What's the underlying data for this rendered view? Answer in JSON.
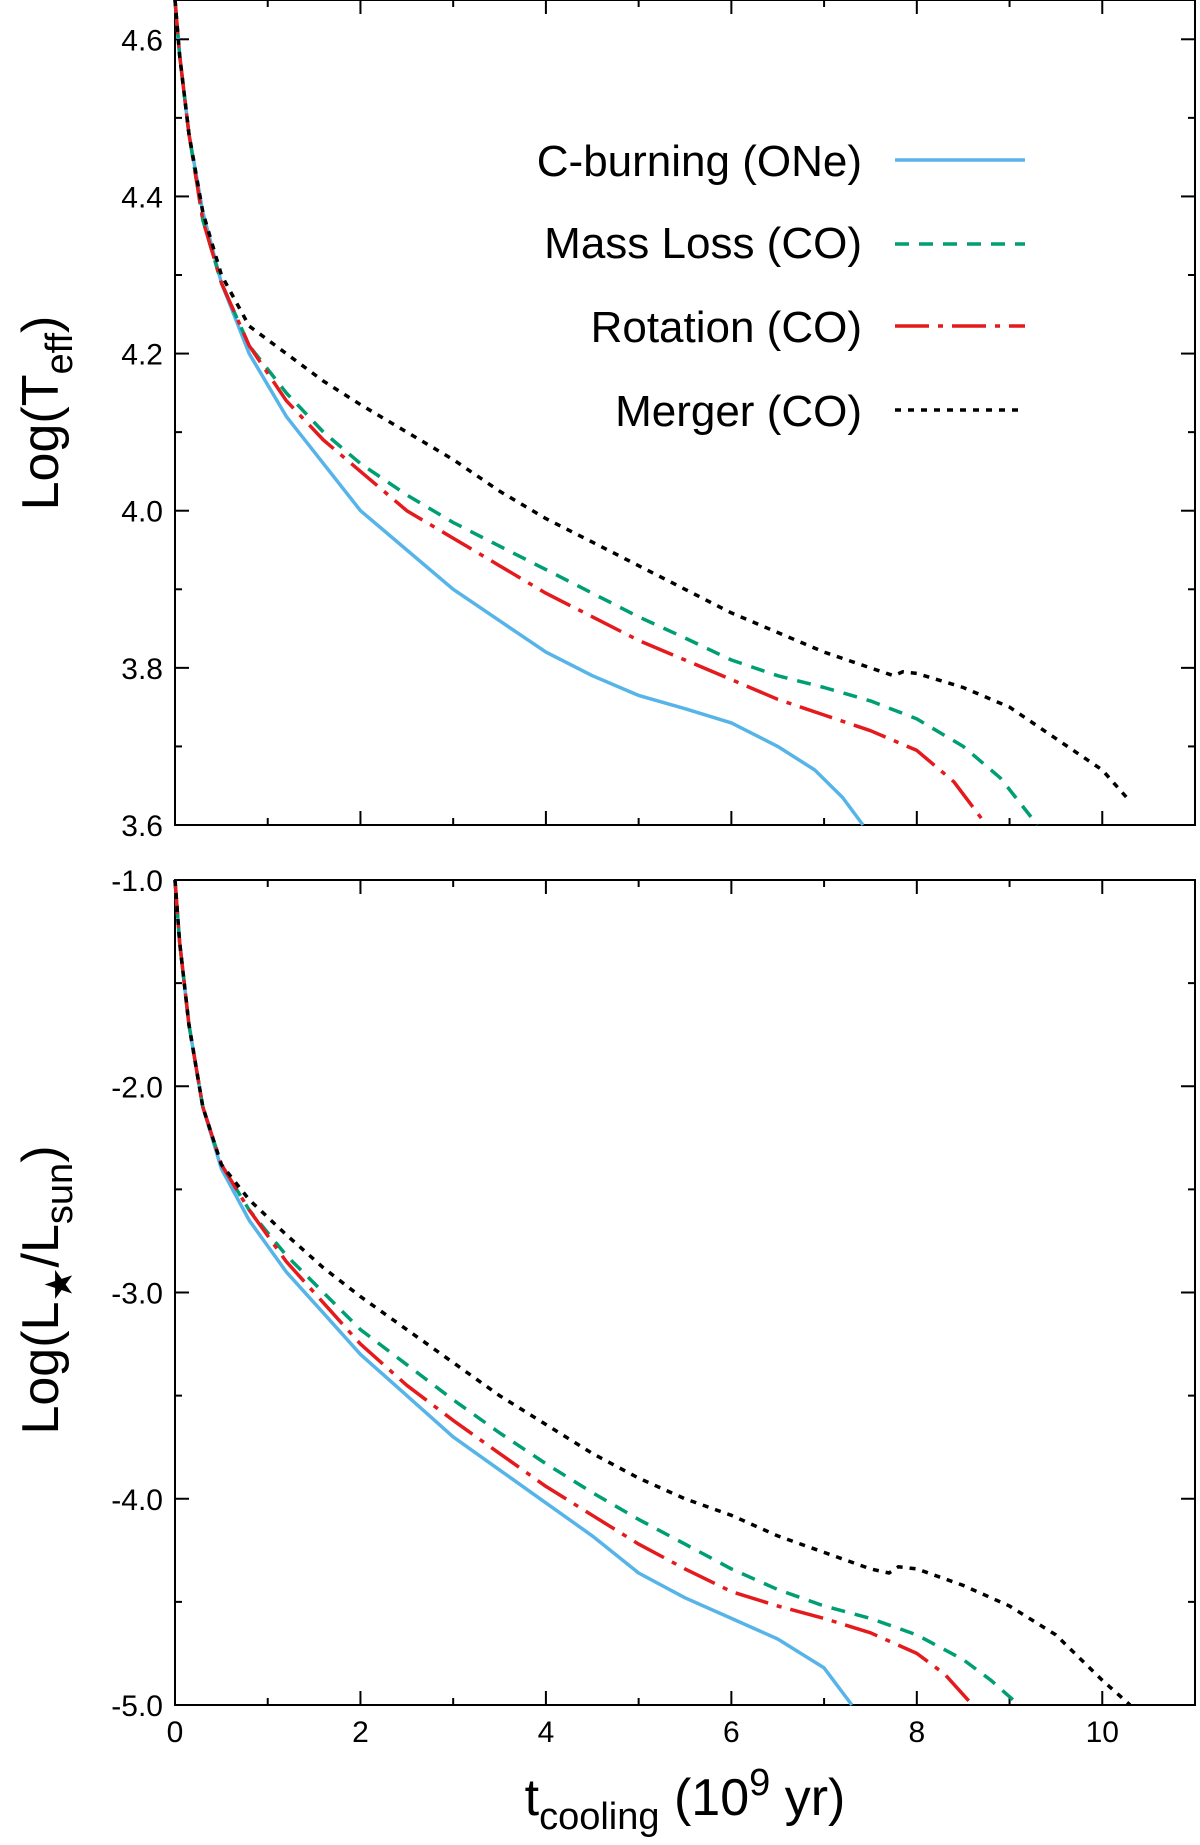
{
  "colors": {
    "c_burning": "#56b4e9",
    "mass_loss": "#009e73",
    "rotation": "#e41a1c",
    "merger": "#000000"
  },
  "chart_data": {
    "type": "line",
    "shared_x": {
      "label_main": "t",
      "label_sub": "cooling",
      "label_rest_a": " (10",
      "label_sup": "9",
      "label_rest_b": " yr)",
      "xlim": [
        0,
        11
      ],
      "major_ticks": [
        0,
        2,
        4,
        6,
        8,
        10
      ],
      "tick_labels": [
        "0",
        "2",
        "4",
        "6",
        "8",
        "10"
      ],
      "minor_ticks": [
        1,
        3,
        5,
        7,
        9,
        11
      ]
    },
    "legend": {
      "placement": "top-right of upper panel",
      "entries": [
        {
          "key": "c_burning",
          "label": "C-burning (ONe)",
          "style": "solid"
        },
        {
          "key": "mass_loss",
          "label": "Mass Loss (CO)",
          "style": "dashed"
        },
        {
          "key": "rotation",
          "label": "Rotation (CO)",
          "style": "dash-dot"
        },
        {
          "key": "merger",
          "label": "Merger (CO)",
          "style": "dotted"
        }
      ]
    },
    "panels": [
      {
        "id": "teff",
        "ylabel_main": "Log(T",
        "ylabel_sub": "eff",
        "ylabel_tail": ")",
        "ylim": [
          3.6,
          4.65
        ],
        "yticks": [
          3.6,
          3.8,
          4.0,
          4.2,
          4.4,
          4.6
        ],
        "ytick_labels": [
          "3.6",
          "3.8",
          "4.0",
          "4.2",
          "4.4",
          "4.6"
        ],
        "yminor": [
          3.7,
          3.9,
          4.1,
          4.3,
          4.5
        ],
        "series": [
          {
            "key": "c_burning",
            "points": [
              [
                0,
                4.65
              ],
              [
                0.05,
                4.58
              ],
              [
                0.15,
                4.48
              ],
              [
                0.3,
                4.38
              ],
              [
                0.5,
                4.29
              ],
              [
                0.8,
                4.2
              ],
              [
                1.2,
                4.12
              ],
              [
                1.6,
                4.06
              ],
              [
                2.0,
                4.0
              ],
              [
                2.5,
                3.95
              ],
              [
                3.0,
                3.9
              ],
              [
                3.5,
                3.86
              ],
              [
                4.0,
                3.82
              ],
              [
                4.5,
                3.79
              ],
              [
                5.0,
                3.765
              ],
              [
                5.5,
                3.748
              ],
              [
                6.0,
                3.73
              ],
              [
                6.5,
                3.7
              ],
              [
                6.9,
                3.67
              ],
              [
                7.2,
                3.635
              ],
              [
                7.42,
                3.6
              ]
            ]
          },
          {
            "key": "mass_loss",
            "points": [
              [
                0,
                4.65
              ],
              [
                0.05,
                4.58
              ],
              [
                0.15,
                4.48
              ],
              [
                0.3,
                4.37
              ],
              [
                0.5,
                4.29
              ],
              [
                0.8,
                4.21
              ],
              [
                1.2,
                4.15
              ],
              [
                1.6,
                4.1
              ],
              [
                2.0,
                4.06
              ],
              [
                2.5,
                4.02
              ],
              [
                3.0,
                3.985
              ],
              [
                3.5,
                3.955
              ],
              [
                4.0,
                3.925
              ],
              [
                4.5,
                3.895
              ],
              [
                5.0,
                3.865
              ],
              [
                5.5,
                3.838
              ],
              [
                6.0,
                3.81
              ],
              [
                6.5,
                3.79
              ],
              [
                7.0,
                3.775
              ],
              [
                7.5,
                3.758
              ],
              [
                8.0,
                3.735
              ],
              [
                8.5,
                3.7
              ],
              [
                8.9,
                3.66
              ],
              [
                9.3,
                3.6
              ]
            ]
          },
          {
            "key": "rotation",
            "points": [
              [
                0,
                4.65
              ],
              [
                0.05,
                4.58
              ],
              [
                0.15,
                4.48
              ],
              [
                0.3,
                4.37
              ],
              [
                0.5,
                4.29
              ],
              [
                0.8,
                4.21
              ],
              [
                1.2,
                4.14
              ],
              [
                1.6,
                4.09
              ],
              [
                2.0,
                4.05
              ],
              [
                2.5,
                4.0
              ],
              [
                3.0,
                3.965
              ],
              [
                3.5,
                3.93
              ],
              [
                4.0,
                3.895
              ],
              [
                4.5,
                3.865
              ],
              [
                5.0,
                3.835
              ],
              [
                5.5,
                3.81
              ],
              [
                6.0,
                3.785
              ],
              [
                6.5,
                3.76
              ],
              [
                7.0,
                3.74
              ],
              [
                7.5,
                3.72
              ],
              [
                8.0,
                3.695
              ],
              [
                8.4,
                3.655
              ],
              [
                8.75,
                3.6
              ]
            ]
          },
          {
            "key": "merger",
            "points": [
              [
                0,
                4.65
              ],
              [
                0.05,
                4.58
              ],
              [
                0.15,
                4.48
              ],
              [
                0.3,
                4.38
              ],
              [
                0.5,
                4.3
              ],
              [
                0.8,
                4.235
              ],
              [
                1.2,
                4.2
              ],
              [
                1.6,
                4.165
              ],
              [
                2.0,
                4.135
              ],
              [
                2.5,
                4.1
              ],
              [
                3.0,
                4.065
              ],
              [
                3.5,
                4.025
              ],
              [
                4.0,
                3.99
              ],
              [
                4.5,
                3.96
              ],
              [
                5.0,
                3.93
              ],
              [
                5.5,
                3.9
              ],
              [
                6.0,
                3.87
              ],
              [
                6.5,
                3.845
              ],
              [
                7.0,
                3.82
              ],
              [
                7.5,
                3.8
              ],
              [
                7.75,
                3.79
              ],
              [
                7.85,
                3.795
              ],
              [
                8.0,
                3.793
              ],
              [
                8.5,
                3.775
              ],
              [
                9.0,
                3.75
              ],
              [
                9.5,
                3.71
              ],
              [
                10.0,
                3.67
              ],
              [
                10.3,
                3.63
              ]
            ]
          }
        ]
      },
      {
        "id": "lum",
        "ylabel_main": "Log(L",
        "ylabel_sub": "★",
        "ylabel_mid": "/L",
        "ylabel_sub2": "sun",
        "ylabel_tail": ")",
        "ylim": [
          -5.0,
          -1.0
        ],
        "yticks": [
          -5.0,
          -4.0,
          -3.0,
          -2.0,
          -1.0
        ],
        "ytick_labels": [
          "-5.0",
          "-4.0",
          "-3.0",
          "-2.0",
          "-1.0"
        ],
        "yminor": [
          -4.5,
          -3.5,
          -2.5,
          -1.5
        ],
        "series": [
          {
            "key": "c_burning",
            "points": [
              [
                0,
                -1.0
              ],
              [
                0.05,
                -1.3
              ],
              [
                0.15,
                -1.7
              ],
              [
                0.3,
                -2.1
              ],
              [
                0.5,
                -2.4
              ],
              [
                0.8,
                -2.65
              ],
              [
                1.2,
                -2.9
              ],
              [
                1.6,
                -3.1
              ],
              [
                2.0,
                -3.3
              ],
              [
                2.5,
                -3.5
              ],
              [
                3.0,
                -3.7
              ],
              [
                3.5,
                -3.86
              ],
              [
                4.0,
                -4.02
              ],
              [
                4.5,
                -4.18
              ],
              [
                5.0,
                -4.36
              ],
              [
                5.5,
                -4.48
              ],
              [
                6.0,
                -4.58
              ],
              [
                6.5,
                -4.68
              ],
              [
                7.0,
                -4.82
              ],
              [
                7.3,
                -5.0
              ]
            ]
          },
          {
            "key": "mass_loss",
            "points": [
              [
                0,
                -1.0
              ],
              [
                0.05,
                -1.3
              ],
              [
                0.15,
                -1.7
              ],
              [
                0.3,
                -2.1
              ],
              [
                0.5,
                -2.38
              ],
              [
                0.8,
                -2.6
              ],
              [
                1.2,
                -2.82
              ],
              [
                1.6,
                -3.0
              ],
              [
                2.0,
                -3.18
              ],
              [
                2.5,
                -3.35
              ],
              [
                3.0,
                -3.52
              ],
              [
                3.5,
                -3.68
              ],
              [
                4.0,
                -3.83
              ],
              [
                4.5,
                -3.97
              ],
              [
                5.0,
                -4.1
              ],
              [
                5.5,
                -4.22
              ],
              [
                6.0,
                -4.34
              ],
              [
                6.5,
                -4.44
              ],
              [
                7.0,
                -4.52
              ],
              [
                7.5,
                -4.58
              ],
              [
                8.0,
                -4.66
              ],
              [
                8.5,
                -4.78
              ],
              [
                8.8,
                -4.88
              ],
              [
                9.1,
                -5.0
              ]
            ]
          },
          {
            "key": "rotation",
            "points": [
              [
                0,
                -1.0
              ],
              [
                0.05,
                -1.3
              ],
              [
                0.15,
                -1.7
              ],
              [
                0.3,
                -2.1
              ],
              [
                0.5,
                -2.38
              ],
              [
                0.8,
                -2.6
              ],
              [
                1.2,
                -2.85
              ],
              [
                1.6,
                -3.05
              ],
              [
                2.0,
                -3.25
              ],
              [
                2.5,
                -3.45
              ],
              [
                3.0,
                -3.62
              ],
              [
                3.5,
                -3.78
              ],
              [
                4.0,
                -3.94
              ],
              [
                4.5,
                -4.08
              ],
              [
                5.0,
                -4.22
              ],
              [
                5.5,
                -4.34
              ],
              [
                6.0,
                -4.45
              ],
              [
                6.5,
                -4.52
              ],
              [
                7.0,
                -4.58
              ],
              [
                7.5,
                -4.65
              ],
              [
                8.0,
                -4.75
              ],
              [
                8.3,
                -4.85
              ],
              [
                8.6,
                -5.0
              ]
            ]
          },
          {
            "key": "merger",
            "points": [
              [
                0,
                -1.0
              ],
              [
                0.05,
                -1.3
              ],
              [
                0.15,
                -1.7
              ],
              [
                0.3,
                -2.1
              ],
              [
                0.5,
                -2.38
              ],
              [
                0.8,
                -2.55
              ],
              [
                1.2,
                -2.72
              ],
              [
                1.6,
                -2.88
              ],
              [
                2.0,
                -3.02
              ],
              [
                2.5,
                -3.18
              ],
              [
                3.0,
                -3.34
              ],
              [
                3.5,
                -3.5
              ],
              [
                4.0,
                -3.64
              ],
              [
                4.5,
                -3.78
              ],
              [
                5.0,
                -3.9
              ],
              [
                5.5,
                -4.0
              ],
              [
                6.0,
                -4.08
              ],
              [
                6.5,
                -4.18
              ],
              [
                7.0,
                -4.26
              ],
              [
                7.5,
                -4.34
              ],
              [
                7.7,
                -4.36
              ],
              [
                7.8,
                -4.33
              ],
              [
                8.0,
                -4.34
              ],
              [
                8.5,
                -4.42
              ],
              [
                9.0,
                -4.52
              ],
              [
                9.5,
                -4.66
              ],
              [
                10.0,
                -4.88
              ],
              [
                10.3,
                -5.0
              ]
            ]
          }
        ]
      }
    ]
  }
}
